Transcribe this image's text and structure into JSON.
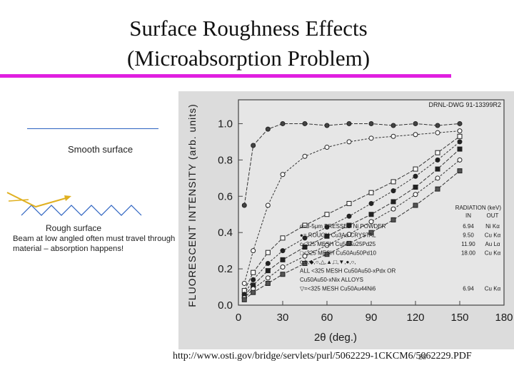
{
  "slide": {
    "title_line1": "Surface Roughness Effects",
    "title_line2": "(Microabsorption Problem)",
    "accent_color": "#e01fe0",
    "source_url": "http://www.osti.gov/bridge/servlets/purl/5062229-1CKCM6/5062229.PDF",
    "page_number": "28"
  },
  "illustration": {
    "smooth_label": "Smooth surface",
    "rough_label": "Rough surface",
    "rough_description": "Beam at low angled often must travel through material – absorption happens!",
    "beam_color": "#e0b020",
    "surface_color": "#2c62c0"
  },
  "chart_data": {
    "type": "scatter",
    "drawing_id": "DRNL-DWG 91-13399R2",
    "xlabel": "2θ (deg.)",
    "ylabel": "FLUORESCENT INTENSITY (arb. units)",
    "xlim": [
      0,
      180
    ],
    "ylim": [
      0,
      1.1
    ],
    "xticks": [
      "0",
      "30",
      "60",
      "90",
      "120",
      "150",
      "180"
    ],
    "yticks": [
      "0.0",
      "0.2",
      "0.4",
      "0.6",
      "0.8",
      "1.0"
    ],
    "legend": {
      "header_radiation": "RADIATION (keV)",
      "header_in": "IN",
      "header_out": "OUT",
      "entries": [
        {
          "label": "d=3-5μm PRESSED Ni POWDER",
          "in": "6.94",
          "out": "Ni Kα"
        },
        {
          "label": "●= ROUGH Cu3Au CRYSTAL",
          "in": "9.50",
          "out": "Cu Kα"
        },
        {
          "label": "c<325 MESH Cu50Au25Pd25",
          "in": "11.90",
          "out": "Au Lα"
        },
        {
          "label": "□<325 MESH Cu50Au50Pd10",
          "in": "18.00",
          "out": "Cu Kα"
        },
        {
          "label": "o,b,◆,○,△,▲,□,▼,●,○,",
          "in": "",
          "out": ""
        },
        {
          "label": "ALL <325 MESH Cu50Au50-xPdx OR",
          "in": "",
          "out": ""
        },
        {
          "label": "Cu50Au50-xNix ALLOYS",
          "in": "",
          "out": ""
        },
        {
          "label": "▽=<325 MESH Cu50Au44Ni6",
          "in": "6.94",
          "out": "Cu Kα"
        }
      ]
    },
    "series": [
      {
        "values_x": [
          4,
          10,
          20,
          30,
          45,
          60,
          75,
          90,
          105,
          120,
          135,
          150
        ],
        "values_y": [
          0.55,
          0.88,
          0.97,
          1.0,
          1.0,
          0.99,
          1.0,
          1.0,
          0.99,
          1.0,
          0.99,
          1.0
        ]
      },
      {
        "values_x": [
          4,
          10,
          20,
          30,
          45,
          60,
          75,
          90,
          105,
          120,
          135,
          150
        ],
        "values_y": [
          0.12,
          0.3,
          0.55,
          0.72,
          0.82,
          0.87,
          0.9,
          0.92,
          0.93,
          0.94,
          0.95,
          0.96
        ]
      },
      {
        "values_x": [
          4,
          10,
          20,
          30,
          45,
          60,
          75,
          90,
          105,
          120,
          135,
          150
        ],
        "values_y": [
          0.08,
          0.18,
          0.29,
          0.37,
          0.44,
          0.5,
          0.56,
          0.62,
          0.68,
          0.75,
          0.84,
          0.93
        ]
      },
      {
        "values_x": [
          4,
          10,
          20,
          30,
          45,
          60,
          75,
          90,
          105,
          120,
          135,
          150
        ],
        "values_y": [
          0.06,
          0.14,
          0.23,
          0.3,
          0.37,
          0.43,
          0.49,
          0.56,
          0.63,
          0.71,
          0.8,
          0.9
        ]
      },
      {
        "values_x": [
          4,
          10,
          20,
          30,
          45,
          60,
          75,
          90,
          105,
          120,
          135,
          150
        ],
        "values_y": [
          0.05,
          0.11,
          0.19,
          0.25,
          0.32,
          0.38,
          0.44,
          0.5,
          0.57,
          0.65,
          0.75,
          0.86
        ]
      },
      {
        "values_x": [
          4,
          10,
          20,
          30,
          45,
          60,
          75,
          90,
          105,
          120,
          135,
          150
        ],
        "values_y": [
          0.04,
          0.09,
          0.15,
          0.21,
          0.27,
          0.33,
          0.39,
          0.46,
          0.53,
          0.61,
          0.7,
          0.8
        ]
      },
      {
        "values_x": [
          4,
          10,
          20,
          30,
          45,
          60,
          75,
          90,
          105,
          120,
          135,
          150
        ],
        "values_y": [
          0.03,
          0.07,
          0.12,
          0.17,
          0.23,
          0.28,
          0.34,
          0.4,
          0.47,
          0.55,
          0.64,
          0.74
        ]
      }
    ]
  }
}
